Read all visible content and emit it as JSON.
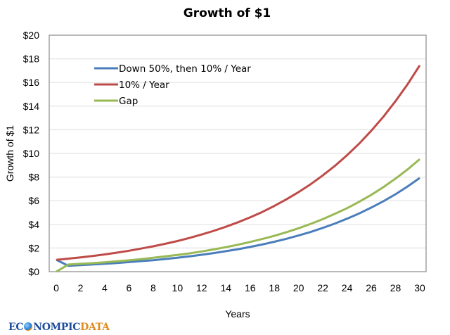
{
  "chart_data": {
    "type": "line",
    "title": "Growth of $1",
    "xlabel": "Years",
    "ylabel": "Growth of $1",
    "xlim": [
      0,
      30
    ],
    "ylim": [
      0,
      20
    ],
    "x_ticks": [
      "0",
      "2",
      "4",
      "6",
      "8",
      "10",
      "12",
      "14",
      "16",
      "18",
      "20",
      "22",
      "24",
      "26",
      "28",
      "30"
    ],
    "y_ticks": [
      "$0",
      "$2",
      "$4",
      "$6",
      "$8",
      "$10",
      "$12",
      "$14",
      "$16",
      "$18",
      "$20"
    ],
    "grid": "horizontal",
    "legend_position": "top-left",
    "x": [
      0,
      1,
      2,
      3,
      4,
      5,
      6,
      7,
      8,
      9,
      10,
      11,
      12,
      13,
      14,
      15,
      16,
      17,
      18,
      19,
      20,
      21,
      22,
      23,
      24,
      25,
      26,
      27,
      28,
      29,
      30
    ],
    "series": [
      {
        "name": "Down 50%, then 10% / Year",
        "color": "#4a7ebb",
        "values": [
          1.0,
          0.5,
          0.55,
          0.61,
          0.67,
          0.73,
          0.81,
          0.89,
          0.97,
          1.07,
          1.18,
          1.3,
          1.43,
          1.57,
          1.73,
          1.9,
          2.09,
          2.3,
          2.53,
          2.78,
          3.06,
          3.36,
          3.7,
          4.07,
          4.48,
          4.92,
          5.42,
          5.96,
          6.55,
          7.21,
          7.93
        ]
      },
      {
        "name": "10% / Year",
        "color": "#be4b48",
        "values": [
          1.0,
          1.1,
          1.21,
          1.33,
          1.46,
          1.61,
          1.77,
          1.95,
          2.14,
          2.36,
          2.59,
          2.85,
          3.14,
          3.45,
          3.8,
          4.18,
          4.59,
          5.05,
          5.56,
          6.12,
          6.73,
          7.4,
          8.14,
          8.95,
          9.85,
          10.83,
          11.92,
          13.11,
          14.42,
          15.86,
          17.45
        ]
      },
      {
        "name": "Gap",
        "color": "#98b954",
        "values": [
          0.0,
          0.6,
          0.66,
          0.72,
          0.79,
          0.88,
          0.96,
          1.06,
          1.17,
          1.29,
          1.41,
          1.55,
          1.71,
          1.88,
          2.07,
          2.28,
          2.51,
          2.76,
          3.03,
          3.34,
          3.67,
          4.04,
          4.44,
          4.89,
          5.37,
          5.91,
          6.5,
          7.15,
          7.87,
          8.65,
          9.52
        ]
      }
    ]
  },
  "branding": {
    "logo_part1": "EC",
    "logo_part2": "NOMPIC",
    "logo_part3": "DATA"
  }
}
